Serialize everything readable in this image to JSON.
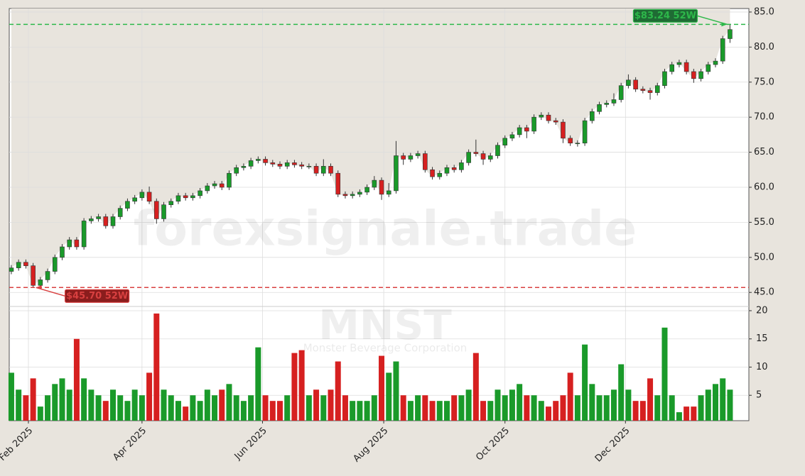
{
  "chart_data": {
    "type": "candlestick",
    "x": [
      0,
      1,
      2,
      3,
      4,
      5,
      6,
      7,
      8,
      9,
      10,
      11,
      12,
      13,
      14,
      15,
      16,
      17,
      18,
      19,
      20,
      21,
      22,
      23,
      24,
      25,
      26,
      27,
      28,
      29,
      30,
      31,
      32,
      33,
      34,
      35,
      36,
      37,
      38,
      39,
      40,
      41,
      42,
      43,
      44,
      45,
      46,
      47,
      48,
      49,
      50,
      51,
      52,
      53,
      54,
      55,
      56,
      57,
      58,
      59,
      60,
      61,
      62,
      63,
      64,
      65,
      66,
      67,
      68,
      69,
      70,
      71,
      72,
      73,
      74,
      75,
      76,
      77,
      78,
      79,
      80,
      81,
      82,
      83,
      84,
      85,
      86,
      87,
      88,
      89,
      90,
      91,
      92,
      93,
      94,
      95,
      96,
      97,
      98,
      99
    ],
    "open": [
      48.0,
      48.5,
      49.3,
      48.8,
      46.0,
      46.8,
      48.0,
      50.0,
      51.5,
      52.5,
      51.5,
      55.2,
      55.5,
      55.8,
      54.5,
      55.8,
      57.0,
      58.0,
      58.5,
      59.3,
      58.0,
      55.5,
      57.5,
      58.0,
      58.8,
      58.5,
      58.8,
      59.5,
      60.2,
      60.5,
      60.0,
      62.0,
      62.8,
      63.0,
      63.8,
      64.0,
      63.5,
      63.3,
      63.0,
      63.5,
      63.2,
      63.0,
      63.0,
      62.0,
      63.0,
      62.0,
      59.0,
      58.8,
      59.0,
      59.3,
      60.0,
      61.0,
      59.0,
      59.5,
      64.5,
      64.0,
      64.5,
      64.8,
      62.5,
      61.5,
      62.0,
      62.8,
      62.5,
      63.5,
      65.0,
      64.8,
      64.0,
      64.5,
      66.0,
      67.0,
      67.5,
      68.5,
      68.0,
      70.0,
      70.3,
      69.5,
      69.3,
      67.0,
      66.3,
      66.3,
      69.5,
      70.8,
      71.8,
      72.0,
      72.5,
      74.5,
      75.3,
      74.0,
      73.8,
      73.5,
      74.5,
      76.5,
      77.5,
      77.8,
      76.5,
      75.5,
      76.5,
      77.5,
      78.0,
      81.2
    ],
    "high": [
      48.9,
      49.7,
      49.7,
      49.2,
      47.2,
      48.4,
      50.4,
      51.9,
      52.9,
      52.9,
      55.6,
      55.9,
      56.2,
      56.2,
      56.2,
      57.4,
      58.4,
      58.9,
      59.7,
      60.1,
      58.4,
      57.9,
      58.4,
      59.2,
      59.2,
      59.2,
      59.9,
      60.6,
      60.9,
      60.9,
      62.4,
      63.2,
      63.4,
      64.2,
      64.4,
      64.4,
      63.9,
      63.7,
      63.9,
      63.9,
      63.6,
      63.4,
      63.4,
      64.0,
      63.4,
      62.4,
      59.4,
      59.4,
      59.7,
      60.4,
      61.6,
      61.4,
      60.6,
      66.6,
      64.9,
      64.9,
      65.2,
      65.2,
      62.9,
      62.4,
      63.2,
      63.2,
      63.9,
      65.4,
      66.8,
      65.2,
      64.9,
      66.4,
      67.4,
      67.9,
      68.9,
      68.9,
      70.4,
      70.7,
      70.7,
      69.9,
      69.7,
      67.4,
      66.7,
      69.9,
      71.2,
      72.2,
      72.4,
      73.4,
      74.9,
      76.1,
      75.7,
      74.4,
      74.2,
      74.9,
      76.9,
      77.9,
      78.2,
      78.2,
      76.9,
      76.9,
      77.9,
      78.4,
      81.6,
      83.24
    ],
    "low": [
      47.6,
      48.1,
      48.4,
      45.7,
      45.8,
      46.4,
      47.6,
      49.6,
      51.1,
      51.1,
      51.1,
      54.8,
      55.1,
      54.1,
      54.1,
      55.4,
      56.6,
      57.6,
      58.1,
      57.6,
      54.8,
      55.1,
      57.1,
      57.6,
      58.1,
      58.1,
      58.4,
      59.1,
      59.8,
      59.6,
      59.6,
      61.6,
      62.4,
      62.6,
      63.4,
      63.1,
      62.9,
      62.6,
      62.6,
      62.8,
      62.6,
      62.6,
      61.6,
      61.6,
      61.6,
      58.6,
      58.4,
      58.4,
      58.6,
      58.9,
      59.6,
      58.2,
      58.6,
      59.1,
      63.2,
      63.6,
      64.1,
      62.1,
      61.1,
      61.1,
      61.6,
      62.1,
      62.1,
      63.1,
      64.4,
      63.2,
      63.6,
      64.1,
      65.6,
      66.6,
      67.1,
      67.0,
      67.6,
      69.6,
      69.1,
      68.9,
      66.3,
      65.9,
      65.8,
      65.9,
      69.1,
      70.4,
      71.4,
      71.6,
      72.1,
      74.1,
      73.6,
      73.4,
      72.5,
      73.1,
      74.1,
      76.1,
      77.1,
      76.1,
      74.9,
      75.1,
      76.1,
      77.1,
      77.6,
      80.6
    ],
    "close": [
      48.5,
      49.3,
      48.8,
      46.0,
      46.8,
      48.0,
      50.0,
      51.5,
      52.5,
      51.5,
      55.2,
      55.5,
      55.8,
      54.5,
      55.8,
      57.0,
      58.0,
      58.5,
      59.3,
      58.0,
      55.5,
      57.5,
      58.0,
      58.8,
      58.5,
      58.8,
      59.5,
      60.2,
      60.5,
      60.0,
      62.0,
      62.8,
      63.0,
      63.8,
      64.0,
      63.5,
      63.3,
      63.0,
      63.5,
      63.2,
      63.0,
      63.0,
      62.0,
      63.0,
      62.0,
      59.0,
      58.8,
      59.0,
      59.3,
      60.0,
      61.0,
      59.0,
      59.5,
      64.5,
      64.0,
      64.5,
      64.8,
      62.5,
      61.5,
      62.0,
      62.8,
      62.5,
      63.5,
      65.0,
      64.8,
      64.0,
      64.5,
      66.0,
      67.0,
      67.5,
      68.5,
      68.0,
      70.0,
      70.3,
      69.5,
      69.3,
      67.0,
      66.3,
      66.3,
      69.5,
      70.8,
      71.8,
      72.0,
      72.5,
      74.5,
      75.3,
      74.0,
      73.8,
      73.5,
      74.5,
      76.5,
      77.5,
      77.8,
      76.5,
      75.5,
      76.5,
      77.5,
      78.0,
      81.2,
      82.5
    ],
    "volume": [
      9,
      6,
      5,
      8,
      3,
      5,
      7,
      8,
      6,
      15,
      8,
      6,
      5,
      4,
      6,
      5,
      4,
      6,
      5,
      9,
      19.5,
      6,
      5,
      4,
      3,
      5,
      4,
      6,
      5,
      6,
      7,
      5,
      4,
      5,
      13.5,
      5,
      4,
      4,
      5,
      12.5,
      13,
      5,
      6,
      5,
      6,
      11,
      5,
      4,
      4,
      4,
      5,
      12,
      9,
      11,
      5,
      4,
      5,
      5,
      4,
      4,
      4,
      5,
      5,
      6,
      12.5,
      4,
      4,
      6,
      5,
      6,
      7,
      5,
      5,
      4,
      3,
      4,
      5,
      9,
      5,
      14,
      7,
      5,
      5,
      6,
      10.5,
      6,
      4,
      4,
      8,
      5,
      17,
      5,
      2,
      3,
      3,
      5,
      6,
      7,
      8,
      6
    ],
    "up_color": "#1a9a2a",
    "down_color": "#d62020",
    "xlim": [
      -0.29,
      101.6
    ],
    "xticks": [
      {
        "value": 2.35,
        "label": "Feb 2025"
      },
      {
        "value": 18.0,
        "label": "Apr 2025"
      },
      {
        "value": 34.6,
        "label": "Jun 2025"
      },
      {
        "value": 51.3,
        "label": "Aug 2025"
      },
      {
        "value": 68.0,
        "label": "Oct 2025"
      },
      {
        "value": 84.6,
        "label": "Dec 2025"
      }
    ],
    "ylim": [
      43.2,
      85.5
    ],
    "yticks": [
      {
        "value": 45,
        "label": "45.0"
      },
      {
        "value": 50,
        "label": "50.0"
      },
      {
        "value": 55,
        "label": "55.0"
      },
      {
        "value": 60,
        "label": "60.0"
      },
      {
        "value": 65,
        "label": "65.0"
      },
      {
        "value": 70,
        "label": "70.0"
      },
      {
        "value": 75,
        "label": "75.0"
      },
      {
        "value": 80,
        "label": "80.0"
      },
      {
        "value": 85,
        "label": "85.0"
      }
    ],
    "volume_ylim": [
      0.5,
      20.5
    ],
    "volume_yticks": [
      5,
      10,
      15,
      20
    ],
    "grid": true,
    "annotations": [
      {
        "value": 83.24,
        "label": "$83.24 52W",
        "color": "#2db84a"
      },
      {
        "value": 45.7,
        "label": "$45.70 52W",
        "color": "#d94040"
      }
    ],
    "watermark": "forexsignale.trade",
    "symbol": "MNST",
    "company": "Monster Beverage Corporation"
  }
}
